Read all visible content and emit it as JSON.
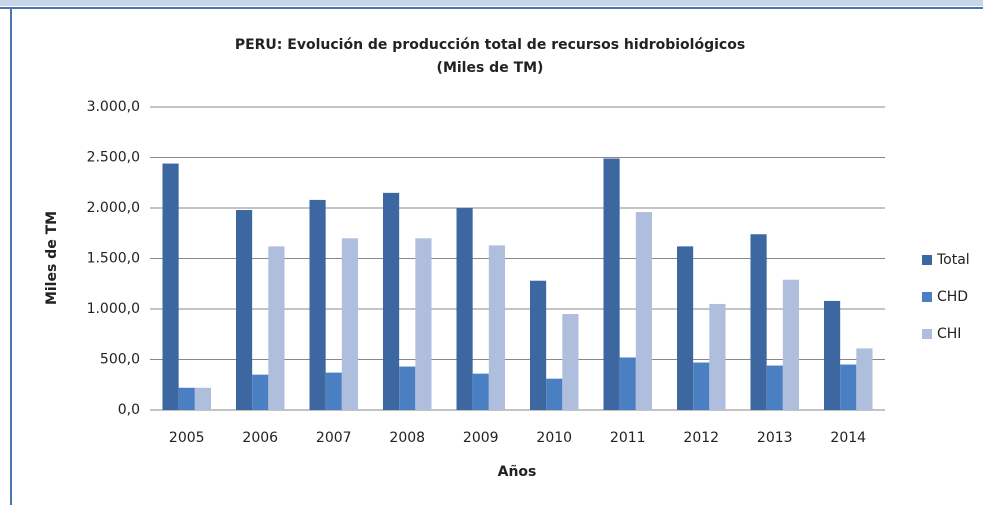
{
  "chart_data": {
    "type": "bar",
    "title": "PERU: Evolución de producción total de recursos hidrobiológicos",
    "subtitle": "(Miles de TM)",
    "ylabel": "Miles de TM",
    "xlabel": "Años",
    "categories": [
      "2005",
      "2006",
      "2007",
      "2008",
      "2009",
      "2010",
      "2011",
      "2012",
      "2013",
      "2014"
    ],
    "series": [
      {
        "name": "Total",
        "color": "#3d67a0",
        "values": [
          2440,
          1980,
          2080,
          2150,
          2000,
          1280,
          2490,
          1620,
          1740,
          1080
        ]
      },
      {
        "name": "CHD",
        "color": "#4a7fc1",
        "values": [
          220,
          350,
          370,
          430,
          360,
          310,
          520,
          470,
          440,
          450
        ]
      },
      {
        "name": "CHI",
        "color": "#afbedc",
        "values": [
          220,
          1620,
          1700,
          1700,
          1630,
          950,
          1960,
          1050,
          1290,
          610
        ]
      }
    ],
    "ylim": [
      0,
      3000
    ],
    "yticks": [
      {
        "value": 0,
        "label": "0,0"
      },
      {
        "value": 500,
        "label": "500,0"
      },
      {
        "value": 1000,
        "label": "1.000,0"
      },
      {
        "value": 1500,
        "label": "1.500,0"
      },
      {
        "value": 2000,
        "label": "2.000,0"
      },
      {
        "value": 2500,
        "label": "2.500,0"
      },
      {
        "value": 3000,
        "label": "3.000,0"
      }
    ],
    "grid": true,
    "legend": "right"
  }
}
